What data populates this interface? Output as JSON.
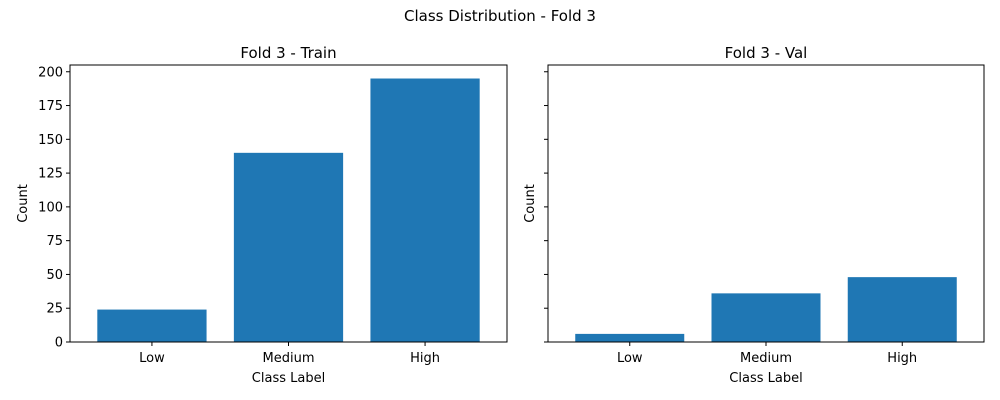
{
  "figure": {
    "suptitle": "Class Distribution - Fold 3"
  },
  "colors": {
    "bar": "#1f77b4",
    "axis": "#000000",
    "background": "#ffffff"
  },
  "chart_data": [
    {
      "type": "bar",
      "title": "Fold 3 - Train",
      "xlabel": "Class Label",
      "ylabel": "Count",
      "categories": [
        "Low",
        "Medium",
        "High"
      ],
      "values": [
        24,
        140,
        195
      ],
      "ylim": [
        0,
        205
      ],
      "yticks": [
        0,
        25,
        50,
        75,
        100,
        125,
        150,
        175,
        200
      ],
      "show_ytick_labels": true,
      "grid": false
    },
    {
      "type": "bar",
      "title": "Fold 3 - Val",
      "xlabel": "Class Label",
      "ylabel": "Count",
      "categories": [
        "Low",
        "Medium",
        "High"
      ],
      "values": [
        6,
        36,
        48
      ],
      "ylim": [
        0,
        205
      ],
      "yticks": [
        0,
        25,
        50,
        75,
        100,
        125,
        150,
        175,
        200
      ],
      "show_ytick_labels": false,
      "grid": false
    }
  ]
}
